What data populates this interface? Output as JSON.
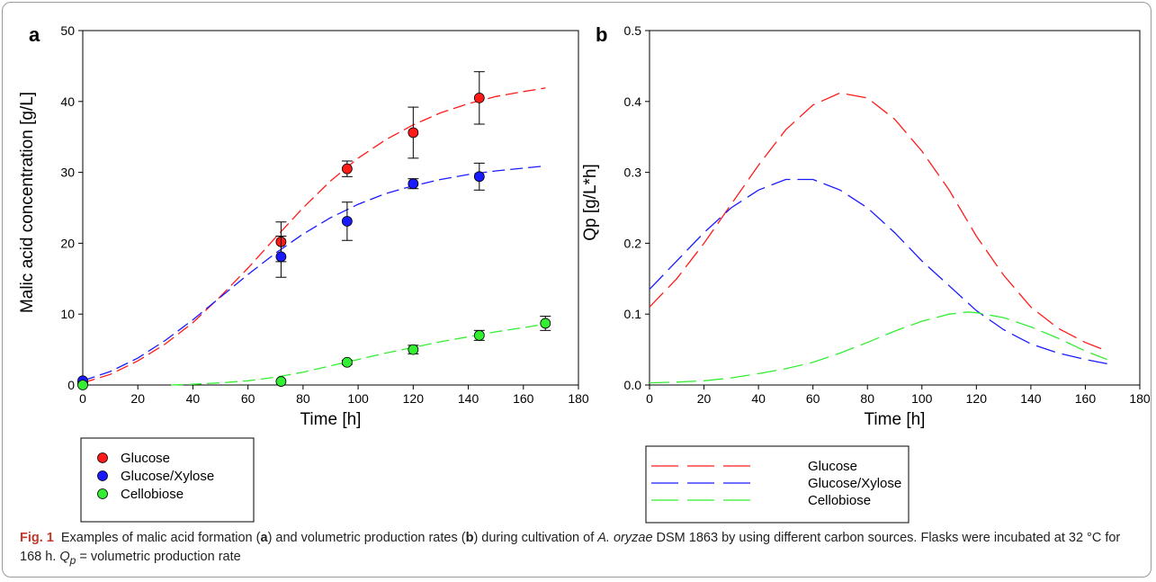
{
  "caption": {
    "fig_label": "Fig. 1",
    "t1": "Examples of malic acid formation (",
    "a": "a",
    "t2": ") and volumetric production rates (",
    "b": "b",
    "t3": ") during cultivation of ",
    "organism": "A. oryzae",
    "t4": " DSM 1863 by using different carbon sources. Flasks were incubated at 32 °C for 168 h. ",
    "qp": "Q",
    "qp_sub": "p",
    "t5": " = volumetric production rate"
  },
  "chart_data": [
    {
      "panel": "a",
      "type": "scatter",
      "xlabel": "Time [h]",
      "ylabel": "Malic acid concentration [g/L]",
      "xlim": [
        0,
        180
      ],
      "ylim": [
        0,
        50
      ],
      "xticks": [
        0,
        20,
        40,
        60,
        80,
        100,
        120,
        140,
        160,
        180
      ],
      "yticks": [
        0,
        10,
        20,
        30,
        40,
        50
      ],
      "grid": false,
      "legend_position": "bottom-left-outside",
      "series": [
        {
          "name": "Glucose",
          "color": "#ff1a1a",
          "points": [
            {
              "x": 0,
              "y": 0.3,
              "err": 0
            },
            {
              "x": 72,
              "y": 20.2,
              "err": 2.8
            },
            {
              "x": 96,
              "y": 30.5,
              "err": 1.1
            },
            {
              "x": 120,
              "y": 35.6,
              "err": 3.6
            },
            {
              "x": 144,
              "y": 40.5,
              "err": 3.7
            }
          ],
          "fit": [
            [
              0,
              0.3
            ],
            [
              10,
              1.5
            ],
            [
              20,
              3.4
            ],
            [
              30,
              5.8
            ],
            [
              40,
              8.8
            ],
            [
              50,
              12.5
            ],
            [
              60,
              16.5
            ],
            [
              70,
              20.8
            ],
            [
              80,
              25.0
            ],
            [
              90,
              28.8
            ],
            [
              100,
              32.0
            ],
            [
              110,
              34.6
            ],
            [
              120,
              36.7
            ],
            [
              130,
              38.4
            ],
            [
              140,
              39.7
            ],
            [
              150,
              40.7
            ],
            [
              160,
              41.4
            ],
            [
              168,
              41.9
            ]
          ]
        },
        {
          "name": "Glucose/Xylose",
          "color": "#1a1aff",
          "points": [
            {
              "x": 0,
              "y": 0.6,
              "err": 0
            },
            {
              "x": 72,
              "y": 18.1,
              "err": 2.9
            },
            {
              "x": 96,
              "y": 23.1,
              "err": 2.7
            },
            {
              "x": 120,
              "y": 28.4,
              "err": 0.7
            },
            {
              "x": 144,
              "y": 29.4,
              "err": 1.9
            }
          ],
          "fit": [
            [
              0,
              0.6
            ],
            [
              10,
              1.9
            ],
            [
              20,
              3.8
            ],
            [
              30,
              6.3
            ],
            [
              40,
              9.2
            ],
            [
              50,
              12.4
            ],
            [
              60,
              15.6
            ],
            [
              70,
              18.6
            ],
            [
              80,
              21.3
            ],
            [
              90,
              23.6
            ],
            [
              100,
              25.5
            ],
            [
              110,
              27.0
            ],
            [
              120,
              28.1
            ],
            [
              130,
              29.0
            ],
            [
              140,
              29.7
            ],
            [
              150,
              30.2
            ],
            [
              160,
              30.6
            ],
            [
              168,
              30.9
            ]
          ]
        },
        {
          "name": "Cellobiose",
          "color": "#33ee33",
          "points": [
            {
              "x": 0,
              "y": 0.0,
              "err": 0
            },
            {
              "x": 72,
              "y": 0.5,
              "err": 0
            },
            {
              "x": 96,
              "y": 3.2,
              "err": 0.3
            },
            {
              "x": 120,
              "y": 5.0,
              "err": 0.6
            },
            {
              "x": 144,
              "y": 7.0,
              "err": 0.7
            },
            {
              "x": 168,
              "y": 8.7,
              "err": 1.0
            }
          ],
          "fit": [
            [
              32,
              0
            ],
            [
              40,
              0.1
            ],
            [
              50,
              0.3
            ],
            [
              60,
              0.6
            ],
            [
              70,
              1.1
            ],
            [
              80,
              1.8
            ],
            [
              90,
              2.7
            ],
            [
              100,
              3.6
            ],
            [
              110,
              4.5
            ],
            [
              120,
              5.3
            ],
            [
              130,
              6.1
            ],
            [
              140,
              6.8
            ],
            [
              150,
              7.5
            ],
            [
              160,
              8.1
            ],
            [
              168,
              8.6
            ]
          ]
        }
      ]
    },
    {
      "panel": "b",
      "type": "line",
      "xlabel": "Time [h]",
      "ylabel": "Qp [g/L*h]",
      "xlim": [
        0,
        180
      ],
      "ylim": [
        0,
        0.5
      ],
      "xticks": [
        0,
        20,
        40,
        60,
        80,
        100,
        120,
        140,
        160,
        180
      ],
      "yticks": [
        0.0,
        0.1,
        0.2,
        0.3,
        0.4,
        0.5
      ],
      "grid": false,
      "legend_position": "bottom-left-outside",
      "series": [
        {
          "name": "Glucose",
          "color": "#ff1a1a",
          "x": [
            0,
            10,
            20,
            30,
            40,
            50,
            60,
            70,
            80,
            90,
            100,
            110,
            120,
            130,
            140,
            150,
            160,
            168
          ],
          "y": [
            0.11,
            0.15,
            0.2,
            0.255,
            0.31,
            0.36,
            0.395,
            0.412,
            0.405,
            0.375,
            0.33,
            0.275,
            0.21,
            0.155,
            0.11,
            0.08,
            0.06,
            0.048
          ]
        },
        {
          "name": "Glucose/Xylose",
          "color": "#1a1aff",
          "x": [
            0,
            10,
            20,
            30,
            40,
            50,
            60,
            70,
            80,
            90,
            100,
            110,
            120,
            130,
            140,
            150,
            160,
            168
          ],
          "y": [
            0.135,
            0.175,
            0.215,
            0.25,
            0.275,
            0.29,
            0.29,
            0.275,
            0.25,
            0.215,
            0.175,
            0.14,
            0.105,
            0.078,
            0.058,
            0.045,
            0.036,
            0.03
          ]
        },
        {
          "name": "Cellobiose",
          "color": "#33ee33",
          "x": [
            0,
            10,
            20,
            30,
            40,
            50,
            60,
            70,
            80,
            90,
            100,
            110,
            117,
            120,
            130,
            140,
            150,
            160,
            168
          ],
          "y": [
            0.003,
            0.004,
            0.006,
            0.01,
            0.016,
            0.023,
            0.032,
            0.045,
            0.06,
            0.076,
            0.09,
            0.1,
            0.103,
            0.102,
            0.095,
            0.082,
            0.066,
            0.048,
            0.036
          ]
        }
      ]
    }
  ]
}
